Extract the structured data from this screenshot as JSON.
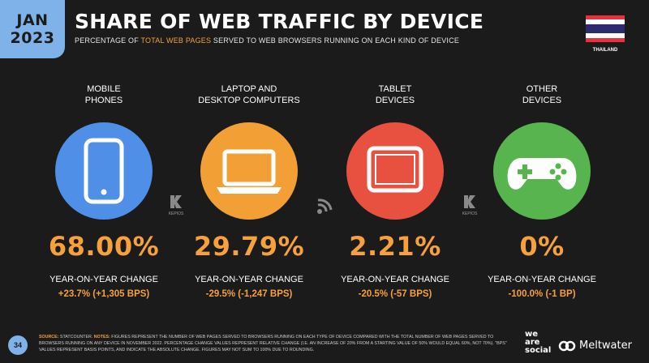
{
  "header": {
    "month": "JAN",
    "year": "2023",
    "title": "SHARE OF WEB TRAFFIC BY DEVICE",
    "subtitle_prefix": "PERCENTAGE OF ",
    "subtitle_highlight": "TOTAL WEB PAGES",
    "subtitle_suffix": " SERVED TO WEB BROWSERS RUNNING ON EACH KIND OF DEVICE",
    "country": "THAILAND"
  },
  "colors": {
    "accent": "#f6a13b",
    "badge": "#7fb2e8",
    "mobile": "#4f8fe8",
    "laptop": "#f2a035",
    "tablet": "#e8513f",
    "other": "#58b44e"
  },
  "chart_data": {
    "type": "table",
    "categories": [
      [
        "MOBILE",
        "PHONES"
      ],
      [
        "LAPTOP AND",
        "DESKTOP COMPUTERS"
      ],
      [
        "TABLET",
        "DEVICES"
      ],
      [
        "OTHER",
        "DEVICES"
      ]
    ],
    "icons": [
      "mobile-phone-icon",
      "laptop-icon",
      "tablet-icon",
      "gamepad-icon"
    ],
    "share_values": [
      "68.00%",
      "29.79%",
      "2.21%",
      "0%"
    ],
    "share": [
      68.0,
      29.79,
      2.21,
      0
    ],
    "yoy_label": "YEAR-ON-YEAR CHANGE",
    "yoy_changes": [
      "+23.7% (+1,305 BPS)",
      "-29.5% (-1,247 BPS)",
      "-20.5% (-57 BPS)",
      "-100.0% (-1 BP)"
    ]
  },
  "footer": {
    "page_number": "34",
    "source_label": "SOURCE:",
    "source": " STATCOUNTER. ",
    "notes_label": "NOTES:",
    "notes": " FIGURES REPRESENT THE NUMBER OF WEB PAGES SERVED TO BROWSERS RUNNING ON EACH TYPE OF DEVICE COMPARED WITH THE TOTAL NUMBER OF WEB PAGES SERVED TO BROWSERS RUNNING ON ANY DEVICE IN NOVEMBER 2022. PERCENTAGE CHANGE VALUES REPRESENT RELATIVE CHANGE (I.E. AN INCREASE OF 20% FROM A STARTING VALUE OF 50% WOULD EQUAL 60%, NOT 70%). \"BPS\" VALUES REPRESENT BASIS POINTS, AND INDICATE THE ABSOLUTE CHANGE. FIGURES MAY NOT SUM TO 100% DUE TO ROUNDING.",
    "brand_1_line_1": "we",
    "brand_1_line_2": "are",
    "brand_1_line_3": "social",
    "brand_2": "Meltwater",
    "kepios": "KEPIOS"
  }
}
